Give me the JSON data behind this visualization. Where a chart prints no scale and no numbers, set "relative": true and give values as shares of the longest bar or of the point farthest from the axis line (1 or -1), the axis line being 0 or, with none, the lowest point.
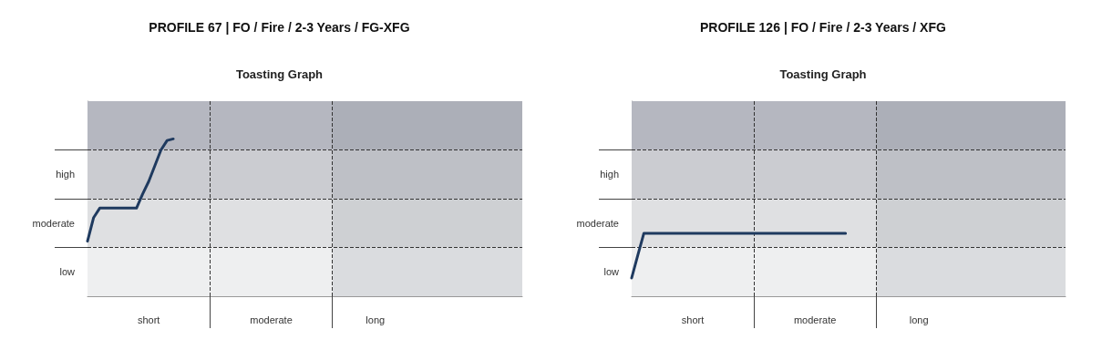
{
  "chart_data": [
    {
      "type": "line",
      "title": "PROFILE 67 | FO / Fire / 2-3 Years / FG-XFG",
      "subtitle": "Toasting Graph",
      "relative": true,
      "categories": [
        null,
        null,
        null,
        null,
        null,
        null,
        null,
        null,
        null,
        null,
        "short",
        null,
        null,
        null,
        null,
        null,
        null,
        null,
        null,
        null,
        null,
        null,
        null,
        null,
        null,
        null,
        null,
        null,
        null,
        null,
        "moderate",
        null,
        null,
        null,
        null,
        null,
        null,
        null,
        null,
        null,
        null,
        null,
        null,
        null,
        null,
        null,
        null,
        "long",
        null,
        null,
        null,
        null,
        null,
        null,
        null,
        null,
        null,
        null,
        null,
        null,
        null,
        null,
        null,
        null,
        null,
        null,
        null,
        null,
        null,
        null,
        null,
        null
      ],
      "series": [
        {
          "color": "#1f3a5f",
          "values": [
            0.35,
            0.5,
            0.56,
            0.56,
            0.56,
            0.56,
            0.56,
            0.56,
            0.56,
            0.65,
            0.73,
            0.83,
            0.93,
            0.99,
            1,
            null,
            null,
            null,
            null,
            null,
            null,
            null,
            null,
            null,
            null,
            null,
            null,
            null,
            null,
            null,
            null,
            null,
            null,
            null,
            null,
            null,
            null,
            null,
            null,
            null,
            null,
            null,
            null,
            null,
            null,
            null,
            null,
            null,
            null,
            null,
            null,
            null,
            null,
            null,
            null,
            null,
            null,
            null,
            null,
            null,
            null,
            null,
            null,
            null,
            null,
            null,
            null,
            null,
            null,
            null,
            null,
            null
          ]
        }
      ],
      "bands": [
        {
          "axis": "y",
          "from": 0,
          "to": 0.31,
          "color": "#eeeff0",
          "label": "low"
        },
        {
          "axis": "y",
          "from": 0.31,
          "to": 0.62,
          "color": "#dfe0e2",
          "label": "moderate"
        },
        {
          "axis": "y",
          "from": 0.62,
          "to": 0.93,
          "color": "#cbccd1",
          "label": "high"
        },
        {
          "axis": "y",
          "from": 0.93,
          "to": 1.24,
          "color": "#b5b7c0"
        }
      ],
      "ref_lines": [
        {
          "axis": "y",
          "value": 0.31,
          "color": "#333333",
          "line_style": "dashed"
        },
        {
          "axis": "y",
          "value": 0.62,
          "color": "#333333",
          "line_style": "dashed"
        },
        {
          "axis": "y",
          "value": 0.93,
          "color": "#333333",
          "line_style": "dashed"
        }
      ],
      "marker": "none",
      "line_style": "solid"
    },
    {
      "type": "line",
      "title": "PROFILE 126 | FO / Fire / 2-3 Years / XFG",
      "subtitle": "Toasting Graph",
      "relative": true,
      "categories": [
        null,
        null,
        null,
        null,
        null,
        null,
        null,
        null,
        null,
        null,
        "short",
        null,
        null,
        null,
        null,
        null,
        null,
        null,
        null,
        null,
        null,
        null,
        null,
        null,
        null,
        null,
        null,
        null,
        null,
        null,
        "moderate",
        null,
        null,
        null,
        null,
        null,
        null,
        null,
        null,
        null,
        null,
        null,
        null,
        null,
        null,
        null,
        null,
        "long",
        null,
        null,
        null,
        null,
        null,
        null,
        null,
        null,
        null,
        null,
        null,
        null,
        null,
        null,
        null,
        null,
        null,
        null,
        null,
        null,
        null,
        null,
        null,
        null
      ],
      "series": [
        {
          "color": "#1f3a5f",
          "values": [
            0.29,
            0.65,
            1,
            1,
            1,
            1,
            1,
            1,
            1,
            1,
            1,
            1,
            1,
            1,
            1,
            1,
            1,
            1,
            1,
            1,
            1,
            1,
            1,
            1,
            1,
            1,
            1,
            1,
            1,
            1,
            1,
            1,
            1,
            1,
            1,
            1,
            null,
            null,
            null,
            null,
            null,
            null,
            null,
            null,
            null,
            null,
            null,
            null,
            null,
            null,
            null,
            null,
            null,
            null,
            null,
            null,
            null,
            null,
            null,
            null,
            null,
            null,
            null,
            null,
            null,
            null,
            null,
            null,
            null,
            null,
            null,
            null
          ]
        }
      ],
      "bands": [
        {
          "axis": "y",
          "from": 0,
          "to": 0.78,
          "color": "#eeeff0",
          "label": "low"
        },
        {
          "axis": "y",
          "from": 0.78,
          "to": 1.55,
          "color": "#dfe0e2",
          "label": "moderate"
        },
        {
          "axis": "y",
          "from": 1.55,
          "to": 2.33,
          "color": "#cbccd1",
          "label": "high"
        },
        {
          "axis": "y",
          "from": 2.33,
          "to": 3.1,
          "color": "#b5b7c0"
        }
      ],
      "ref_lines": [
        {
          "axis": "y",
          "value": 0.78,
          "color": "#333333",
          "line_style": "dashed"
        },
        {
          "axis": "y",
          "value": 1.55,
          "color": "#333333",
          "line_style": "dashed"
        },
        {
          "axis": "y",
          "value": 2.33,
          "color": "#333333",
          "line_style": "dashed"
        }
      ],
      "marker": "none",
      "line_style": "solid"
    }
  ]
}
